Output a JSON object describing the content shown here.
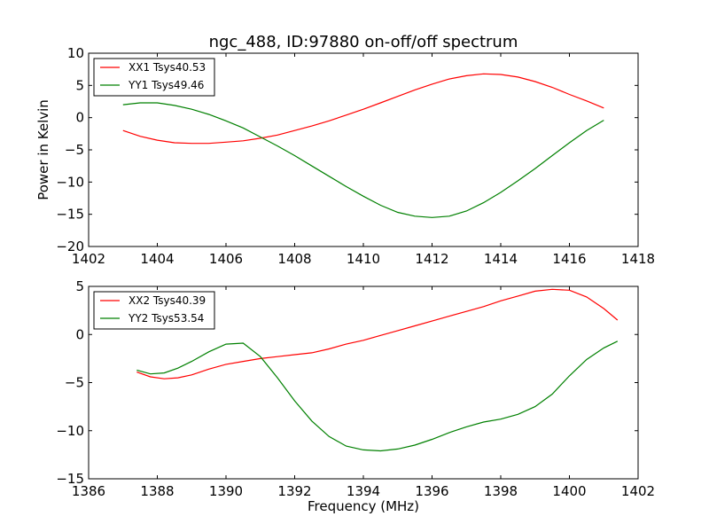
{
  "chart_data": [
    {
      "type": "line",
      "title": "ngc_488, ID:97880 on-off/off spectrum",
      "xlabel": "",
      "ylabel": "Power in Kelvin",
      "xlim": [
        1402,
        1418
      ],
      "ylim": [
        -20,
        10
      ],
      "xticks": [
        1402,
        1404,
        1406,
        1408,
        1410,
        1412,
        1414,
        1416,
        1418
      ],
      "yticks": [
        -20,
        -15,
        -10,
        -5,
        0,
        5,
        10
      ],
      "grid": false,
      "legend_position": "top-left",
      "series": [
        {
          "name": "XX1 Tsys40.53",
          "color": "#ff0000",
          "x": [
            1403,
            1403.5,
            1404,
            1404.5,
            1405,
            1405.5,
            1406,
            1406.5,
            1407,
            1407.5,
            1408,
            1408.5,
            1409,
            1409.5,
            1410,
            1410.5,
            1411,
            1411.5,
            1412,
            1412.5,
            1413,
            1413.5,
            1414,
            1414.5,
            1415,
            1415.5,
            1416,
            1416.5,
            1417
          ],
          "y": [
            -2.0,
            -2.9,
            -3.5,
            -3.9,
            -4.0,
            -4.0,
            -3.8,
            -3.6,
            -3.2,
            -2.7,
            -2.0,
            -1.3,
            -0.5,
            0.4,
            1.3,
            2.3,
            3.3,
            4.3,
            5.2,
            6.0,
            6.5,
            6.8,
            6.7,
            6.3,
            5.6,
            4.7,
            3.6,
            2.6,
            1.5
          ]
        },
        {
          "name": "YY1 Tsys49.46",
          "color": "#008000",
          "x": [
            1403,
            1403.5,
            1404,
            1404.5,
            1405,
            1405.5,
            1406,
            1406.5,
            1407,
            1407.5,
            1408,
            1408.5,
            1409,
            1409.5,
            1410,
            1410.5,
            1411,
            1411.5,
            1412,
            1412.5,
            1413,
            1413.5,
            1414,
            1414.5,
            1415,
            1415.5,
            1416,
            1416.5,
            1417
          ],
          "y": [
            2.0,
            2.3,
            2.3,
            1.9,
            1.3,
            0.5,
            -0.5,
            -1.6,
            -3.0,
            -4.4,
            -5.9,
            -7.5,
            -9.1,
            -10.7,
            -12.2,
            -13.6,
            -14.7,
            -15.3,
            -15.5,
            -15.3,
            -14.5,
            -13.2,
            -11.6,
            -9.8,
            -7.9,
            -5.9,
            -3.9,
            -2.0,
            -0.4
          ]
        }
      ]
    },
    {
      "type": "line",
      "title": "",
      "xlabel": "Frequency (MHz)",
      "ylabel": "",
      "xlim": [
        1386,
        1402
      ],
      "ylim": [
        -15,
        5
      ],
      "xticks": [
        1386,
        1388,
        1390,
        1392,
        1394,
        1396,
        1398,
        1400,
        1402
      ],
      "yticks": [
        -15,
        -10,
        -5,
        0,
        5
      ],
      "grid": false,
      "legend_position": "top-left",
      "series": [
        {
          "name": "XX2 Tsys40.39",
          "color": "#ff0000",
          "x": [
            1387.4,
            1387.8,
            1388.2,
            1388.6,
            1389,
            1389.5,
            1390,
            1390.5,
            1391,
            1391.5,
            1392,
            1392.5,
            1393,
            1393.5,
            1394,
            1394.5,
            1395,
            1395.5,
            1396,
            1396.5,
            1397,
            1397.5,
            1398,
            1398.5,
            1399,
            1399.5,
            1400,
            1400.5,
            1401,
            1401.4
          ],
          "y": [
            -3.9,
            -4.4,
            -4.6,
            -4.5,
            -4.2,
            -3.6,
            -3.1,
            -2.8,
            -2.5,
            -2.3,
            -2.1,
            -1.9,
            -1.5,
            -1.0,
            -0.6,
            -0.1,
            0.4,
            0.9,
            1.4,
            1.9,
            2.4,
            2.9,
            3.5,
            4.0,
            4.5,
            4.7,
            4.6,
            3.9,
            2.7,
            1.5
          ]
        },
        {
          "name": "YY2 Tsys53.54",
          "color": "#008000",
          "x": [
            1387.4,
            1387.8,
            1388.2,
            1388.6,
            1389,
            1389.5,
            1390,
            1390.5,
            1391,
            1391.5,
            1392,
            1392.5,
            1393,
            1393.5,
            1394,
            1394.5,
            1395,
            1395.5,
            1396,
            1396.5,
            1397,
            1397.5,
            1398,
            1398.5,
            1399,
            1399.5,
            1400,
            1400.5,
            1401,
            1401.4
          ],
          "y": [
            -3.7,
            -4.1,
            -4.0,
            -3.5,
            -2.8,
            -1.8,
            -1.0,
            -0.9,
            -2.3,
            -4.5,
            -6.9,
            -9.0,
            -10.6,
            -11.6,
            -12.0,
            -12.1,
            -11.9,
            -11.5,
            -10.9,
            -10.2,
            -9.6,
            -9.1,
            -8.8,
            -8.3,
            -7.5,
            -6.2,
            -4.3,
            -2.6,
            -1.4,
            -0.7
          ]
        }
      ]
    }
  ]
}
